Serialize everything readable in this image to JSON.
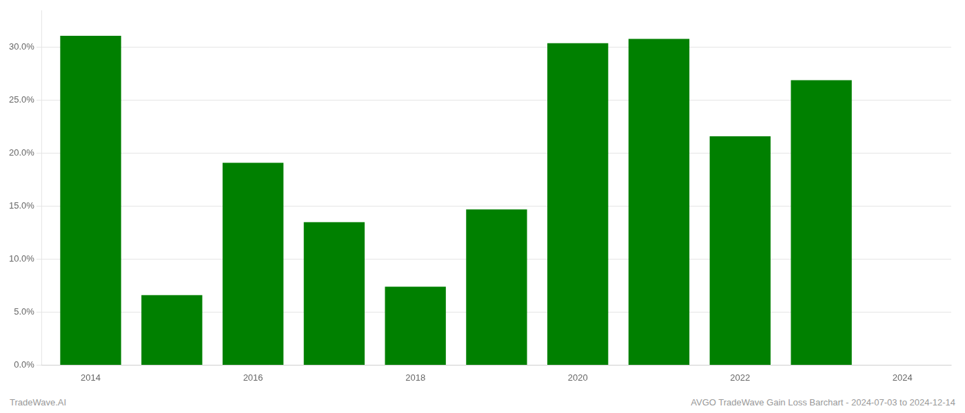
{
  "chart_data": {
    "type": "bar",
    "x": [
      2014,
      2015,
      2016,
      2017,
      2018,
      2019,
      2020,
      2021,
      2022,
      2023
    ],
    "values": [
      0.311,
      0.066,
      0.191,
      0.135,
      0.074,
      0.147,
      0.304,
      0.308,
      0.216,
      0.269
    ],
    "color": "#008000",
    "xlim": [
      2013.4,
      2024.6
    ],
    "xticks": [
      2014,
      2016,
      2018,
      2020,
      2022,
      2024
    ],
    "ylim": [
      0,
      0.335
    ],
    "yticks": [
      {
        "value": 0.0,
        "label": "0.0%"
      },
      {
        "value": 0.05,
        "label": "5.0%"
      },
      {
        "value": 0.1,
        "label": "10.0%"
      },
      {
        "value": 0.15,
        "label": "15.0%"
      },
      {
        "value": 0.2,
        "label": "20.0%"
      },
      {
        "value": 0.25,
        "label": "25.0%"
      },
      {
        "value": 0.3,
        "label": "30.0%"
      }
    ],
    "grid": true,
    "annotations": [
      "TradeWave.AI",
      "AVGO TradeWave Gain Loss Barchart - 2024-07-03 to 2024-12-14"
    ]
  }
}
